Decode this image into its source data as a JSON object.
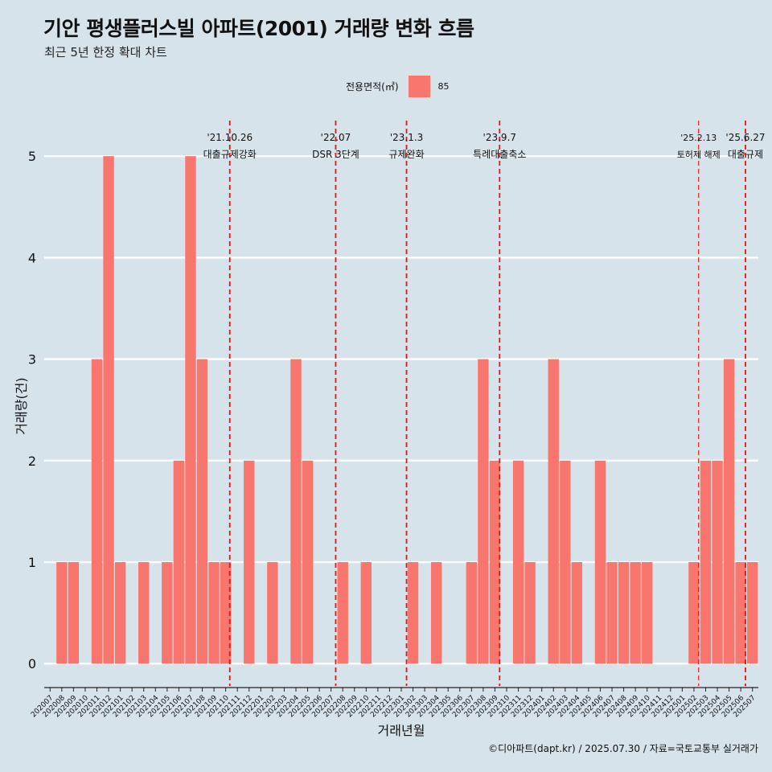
{
  "header": {
    "title": "기안 평생플러스빌 아파트(2001) 거래량 변화 흐름",
    "subtitle": "최근 5년 한정 확대 차트"
  },
  "legend": {
    "title": "전용면적(㎡)",
    "items": [
      {
        "label": "85",
        "color": "#f8766d"
      }
    ]
  },
  "caption": "©디아파트(dapt.kr) / 2025.07.30 / 자료=국토교통부 실거래가",
  "chart_data": {
    "type": "bar",
    "xlabel": "거래년월",
    "ylabel": "거래량(건)",
    "ylim": [
      -0.22,
      5.35
    ],
    "yticks": [
      0,
      1,
      2,
      3,
      4,
      5
    ],
    "bar_color": "#f8766d",
    "grid": true,
    "categories": [
      "202007",
      "202008",
      "202009",
      "202010",
      "202011",
      "202012",
      "202101",
      "202102",
      "202103",
      "202104",
      "202105",
      "202106",
      "202107",
      "202108",
      "202109",
      "202110",
      "202111",
      "202112",
      "202201",
      "202202",
      "202203",
      "202204",
      "202205",
      "202206",
      "202207",
      "202208",
      "202209",
      "202210",
      "202211",
      "202212",
      "202301",
      "202302",
      "202303",
      "202304",
      "202305",
      "202306",
      "202307",
      "202308",
      "202309",
      "202310",
      "202311",
      "202312",
      "202401",
      "202402",
      "202403",
      "202404",
      "202405",
      "202406",
      "202407",
      "202408",
      "202409",
      "202410",
      "202411",
      "202412",
      "202501",
      "202502",
      "202503",
      "202504",
      "202505",
      "202506",
      "202507"
    ],
    "series": [
      {
        "name": "85",
        "values": [
          0,
          1,
          1,
          0,
          3,
          5,
          1,
          0,
          1,
          0,
          1,
          2,
          5,
          3,
          1,
          1,
          0,
          2,
          0,
          1,
          0,
          3,
          2,
          0,
          0,
          1,
          0,
          1,
          0,
          0,
          0,
          1,
          0,
          1,
          0,
          0,
          1,
          3,
          2,
          0,
          2,
          1,
          0,
          3,
          2,
          1,
          0,
          2,
          1,
          1,
          1,
          1,
          0,
          0,
          0,
          1,
          2,
          2,
          3,
          1,
          1
        ]
      }
    ],
    "annotations": [
      {
        "date": "'21.10.26",
        "label": "대출규제강화",
        "pos": 15.85,
        "major": true
      },
      {
        "date": "'22.07",
        "label": "DSR 3단계",
        "pos": 24.9,
        "major": true
      },
      {
        "date": "'23.1.3",
        "label": "규제완화",
        "pos": 30.95,
        "major": true
      },
      {
        "date": "'23.9.7",
        "label": "특례대출축소",
        "pos": 38.9,
        "major": true
      },
      {
        "date": "'25.2.13",
        "label": "토허제 해제",
        "pos": 55.9,
        "major": false
      },
      {
        "date": "'25.6.27",
        "label": "대출규제",
        "pos": 59.9,
        "major": true
      }
    ]
  }
}
